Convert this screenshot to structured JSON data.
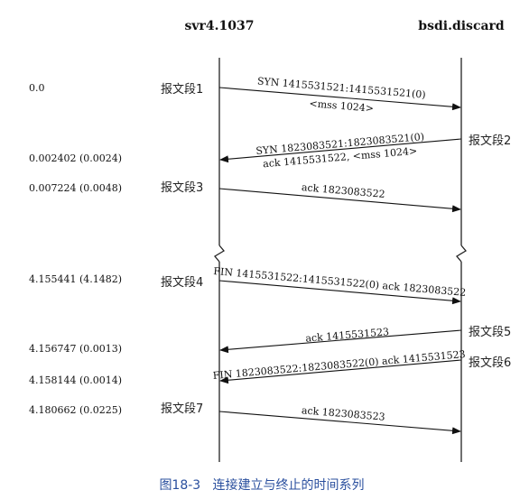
{
  "hosts": {
    "left": "svr4.1037",
    "right": "bsdi.discard"
  },
  "segments": [
    {
      "label": "报文段1",
      "time": "0.0",
      "lines": [
        "SYN  1415531521:1415531521(0)",
        "<mss 1024>"
      ]
    },
    {
      "label": "报文段2",
      "time": "0.002402 (0.0024)",
      "lines": [
        "SYN  1823083521:1823083521(0)",
        "ack 1415531522, <mss 1024>"
      ]
    },
    {
      "label": "报文段3",
      "time": "0.007224 (0.0048)",
      "lines": [
        "ack 1823083522"
      ]
    },
    {
      "label": "报文段4",
      "time": "4.155441 (4.1482)",
      "lines": [
        "FIN  1415531522:1415531522(0) ack 1823083522"
      ]
    },
    {
      "label": "报文段5",
      "time": "4.156747 (0.0013)",
      "lines": [
        "ack 1415531523"
      ]
    },
    {
      "label": "报文段6",
      "time": "4.158144 (0.0014)",
      "lines": [
        "FIN  1823083522:1823083522(0) ack 1415531523"
      ]
    },
    {
      "label": "报文段7",
      "time": "4.180662 (0.0225)",
      "lines": [
        "ack 1823083523"
      ]
    }
  ],
  "caption": "图18-3   连接建立与终止的时间系列"
}
